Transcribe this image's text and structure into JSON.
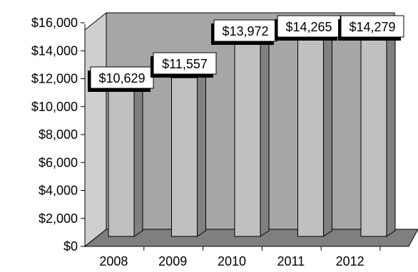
{
  "chart_data": {
    "type": "bar",
    "categories": [
      "2008",
      "2009",
      "2010",
      "2011",
      "2012"
    ],
    "values": [
      10629,
      11557,
      13972,
      14265,
      14279
    ],
    "data_labels": [
      "$10,629",
      "$11,557",
      "$13,972",
      "$14,265",
      "$14,279"
    ],
    "title": "",
    "xlabel": "",
    "ylabel": "",
    "ylim": [
      0,
      16000
    ],
    "yticks": [
      0,
      2000,
      4000,
      6000,
      8000,
      10000,
      12000,
      14000,
      16000
    ],
    "ytick_labels": [
      "$0",
      "$2,000",
      "$4,000",
      "$6,000",
      "$8,000",
      "$10,000",
      "$12,000",
      "$14,000",
      "$16,000"
    ],
    "grid": false,
    "style": "3d",
    "colors": {
      "back_wall": "#a6a6a6",
      "floor": "#7f7f7f",
      "side_wall": "#cfcfcf",
      "bar_front": "#c0c0c0",
      "bar_side": "#808080",
      "bar_top": "#e0e0e0",
      "label_box": "#ffffff",
      "label_shadow": "#000000"
    }
  }
}
